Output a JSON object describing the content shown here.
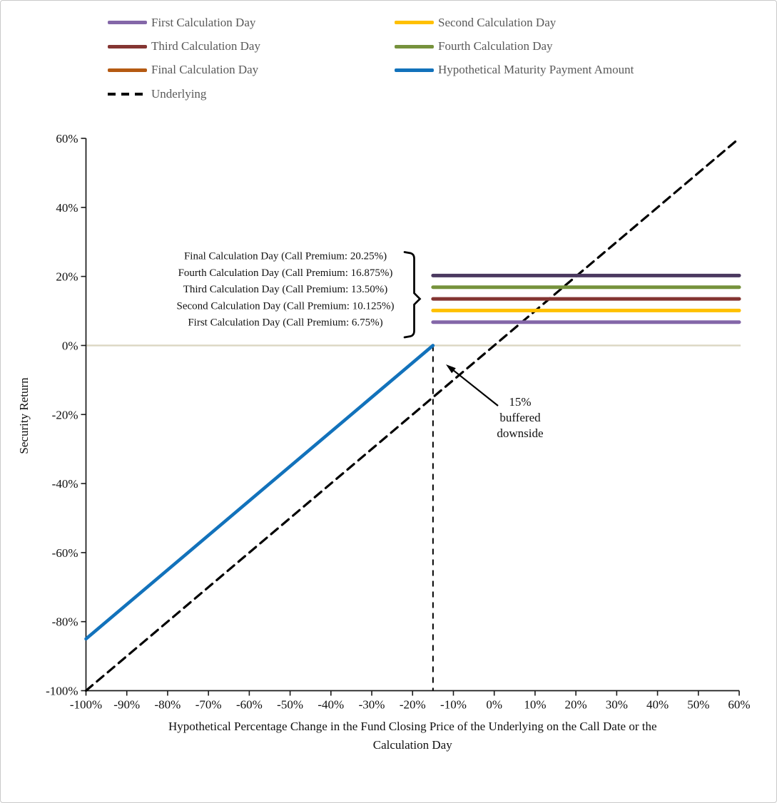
{
  "legend": {
    "items": [
      {
        "label": "First Calculation Day",
        "color": "#8467A8",
        "style": "solid"
      },
      {
        "label": "Second Calculation Day",
        "color": "#FFC000",
        "style": "solid"
      },
      {
        "label": "Third Calculation Day",
        "color": "#843532",
        "style": "solid"
      },
      {
        "label": "Fourth Calculation Day",
        "color": "#76923C",
        "style": "solid"
      },
      {
        "label": "Final Calculation Day",
        "color": "#B55A12",
        "style": "solid"
      },
      {
        "label": "Hypothetical Maturity Payment Amount",
        "color": "#1272BB",
        "style": "solid"
      },
      {
        "label": "Underlying",
        "color": "#000000",
        "style": "dashed"
      }
    ]
  },
  "chart_data": {
    "type": "line",
    "title": "",
    "xlabel": "Hypothetical Percentage Change in the Fund Closing Price of the Underlying on the Call Date or the Calculation Day",
    "xlabel_lines": [
      "Hypothetical Percentage Change in the Fund Closing Price of the Underlying on the Call Date or the",
      "Calculation Day"
    ],
    "ylabel": "Security Return",
    "xlim": [
      -100,
      60
    ],
    "ylim": [
      -100,
      60
    ],
    "grid": "zero-line-only",
    "zero_gridline_color": "#DBD6C2",
    "legend_position": "top",
    "x_ticks": [
      {
        "v": -100,
        "label": "-100%"
      },
      {
        "v": -90,
        "label": "-90%"
      },
      {
        "v": -80,
        "label": "-80%"
      },
      {
        "v": -70,
        "label": "-70%"
      },
      {
        "v": -60,
        "label": "-60%"
      },
      {
        "v": -50,
        "label": "-50%"
      },
      {
        "v": -40,
        "label": "-40%"
      },
      {
        "v": -30,
        "label": "-30%"
      },
      {
        "v": -20,
        "label": "-20%"
      },
      {
        "v": -10,
        "label": "-10%"
      },
      {
        "v": 0,
        "label": "0%"
      },
      {
        "v": 10,
        "label": "10%"
      },
      {
        "v": 20,
        "label": "20%"
      },
      {
        "v": 30,
        "label": "30%"
      },
      {
        "v": 40,
        "label": "40%"
      },
      {
        "v": 50,
        "label": "50%"
      },
      {
        "v": 60,
        "label": "60%"
      }
    ],
    "y_ticks": [
      {
        "v": 60,
        "label": "60%"
      },
      {
        "v": 40,
        "label": "40%"
      },
      {
        "v": 20,
        "label": "20%"
      },
      {
        "v": 0,
        "label": "0%"
      },
      {
        "v": -20,
        "label": "-20%"
      },
      {
        "v": -40,
        "label": "-40%"
      },
      {
        "v": -60,
        "label": "-60%"
      },
      {
        "v": -80,
        "label": "-80%"
      },
      {
        "v": -100,
        "label": "-100%"
      }
    ],
    "series": [
      {
        "name": "Underlying",
        "color": "#000000",
        "dash": [
          12,
          8
        ],
        "width": 3.2,
        "points": [
          [
            -100,
            -100
          ],
          [
            60,
            60
          ]
        ]
      },
      {
        "name": "Hypothetical Maturity Payment Amount",
        "color": "#1272BB",
        "width": 4.6,
        "points": [
          [
            -100,
            -85
          ],
          [
            -15,
            0
          ]
        ]
      },
      {
        "name": "First Calculation Day",
        "call_premium": "6.75%",
        "color": "#8467A8",
        "width": 5,
        "points": [
          [
            -15,
            6.75
          ],
          [
            60,
            6.75
          ]
        ]
      },
      {
        "name": "Second Calculation Day",
        "call_premium": "10.125%",
        "color": "#FFC000",
        "width": 5,
        "points": [
          [
            -15,
            10.125
          ],
          [
            60,
            10.125
          ]
        ]
      },
      {
        "name": "Third Calculation Day",
        "call_premium": "13.50%",
        "color": "#843532",
        "width": 5,
        "points": [
          [
            -15,
            13.5
          ],
          [
            60,
            13.5
          ]
        ]
      },
      {
        "name": "Fourth Calculation Day",
        "call_premium": "16.875%",
        "color": "#76923C",
        "width": 5,
        "points": [
          [
            -15,
            16.875
          ],
          [
            60,
            16.875
          ]
        ]
      },
      {
        "name": "Final Calculation Day",
        "call_premium": "20.25%",
        "color": "#4B3960",
        "width": 5,
        "points": [
          [
            -15,
            20.25
          ],
          [
            60,
            20.25
          ]
        ]
      }
    ],
    "buffer": {
      "x": -15,
      "note_lines": [
        "15%",
        "buffered",
        "downside"
      ]
    },
    "call_premium_labels": [
      "Final Calculation Day (Call Premium: 20.25%)",
      "Fourth Calculation Day (Call Premium: 16.875%)",
      "Third Calculation Day (Call Premium: 13.50%)",
      "Second Calculation Day (Call Premium: 10.125%)",
      "First Calculation Day (Call Premium: 6.75%)"
    ]
  }
}
